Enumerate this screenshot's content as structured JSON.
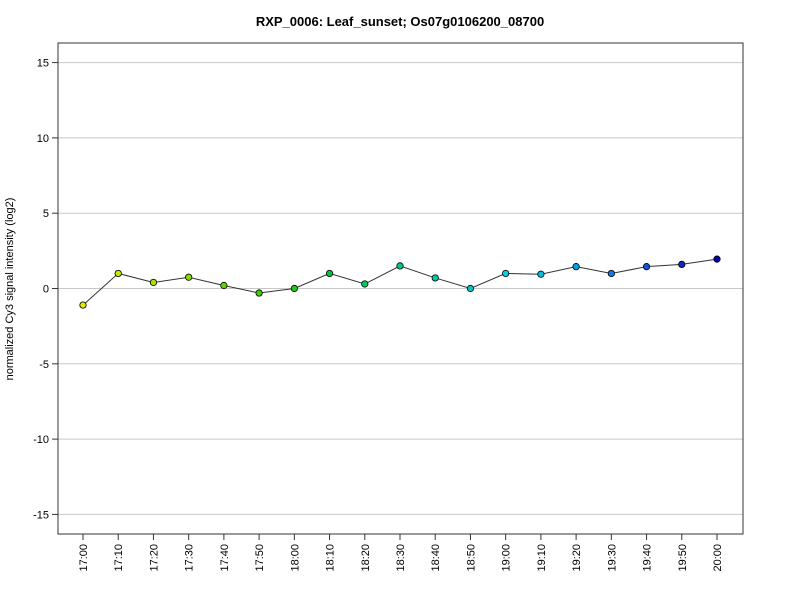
{
  "chart_data": {
    "type": "line",
    "title": "RXP_0006: Leaf_sunset; Os07g0106200_08700",
    "xlabel": "",
    "ylabel": "normalized Cy3 signal intensity (log2)",
    "ylim": [
      -16.3,
      16.3
    ],
    "yticks": [
      -15,
      -10,
      -5,
      0,
      5,
      10,
      15
    ],
    "ytick_labels": [
      "-15",
      "-10",
      "-5",
      "0",
      "5",
      "10",
      "15"
    ],
    "grid": "horizontal",
    "categories": [
      "17:00",
      "17:10",
      "17:20",
      "17:30",
      "17:40",
      "17:50",
      "18:00",
      "18:10",
      "18:20",
      "18:30",
      "18:40",
      "18:50",
      "19:00",
      "19:10",
      "19:20",
      "19:30",
      "19:40",
      "19:50",
      "20:00"
    ],
    "values": [
      -1.1,
      1.0,
      0.4,
      0.75,
      0.2,
      -0.3,
      0.0,
      1.0,
      0.3,
      1.5,
      0.7,
      0.0,
      1.0,
      0.95,
      1.45,
      1.0,
      1.45,
      1.6,
      1.95
    ],
    "point_colors": [
      "#e6e600",
      "#c8e600",
      "#a8e000",
      "#88dc00",
      "#5fd700",
      "#3ccd00",
      "#1ec814",
      "#00c83c",
      "#00c864",
      "#00c88c",
      "#00c8a8",
      "#00c8c8",
      "#00d2e6",
      "#00bee6",
      "#0aa0e6",
      "#1478e6",
      "#1450dc",
      "#0a28c8",
      "#0000b4"
    ],
    "line_color": "#333333",
    "grid_color": "#c8c8c8"
  }
}
